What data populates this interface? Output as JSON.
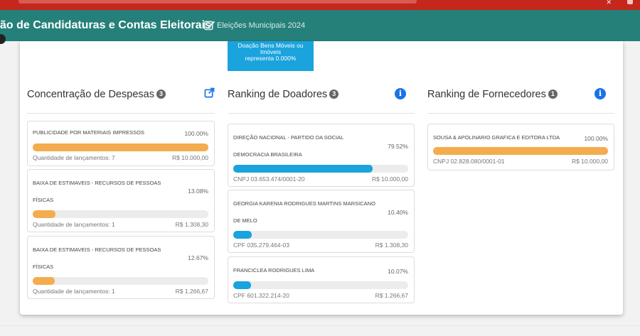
{
  "header": {
    "title": "ão de Candidaturas e Contas Eleitorais",
    "subtitle": "Eleições Municipais 2024"
  },
  "top_box": {
    "lines": [
      "Doação Bens Móveis ou",
      "Imóveis",
      "representa 0.000%"
    ]
  },
  "columns": [
    {
      "title": "Concentração de Despesas",
      "badge": "3",
      "action_icon": "external-link-icon",
      "accent": "#f3ad4e",
      "items": [
        {
          "name": "PUBLICIDADE POR MATERIAIS IMPRESSOS",
          "name2": "",
          "pct": "100.00%",
          "fraction": 1.0,
          "foot_left": "Quantidade de lançamentos: 7",
          "foot_right": "R$ 10.000,00"
        },
        {
          "name": "BAIXA DE ESTIMAVEIS - RECURSOS DE PESSOAS",
          "name2": "FÍSICAS",
          "pct": "13.08%",
          "fraction": 0.1308,
          "foot_left": "Quantidade de lançamentos: 1",
          "foot_right": "R$ 1.308,30"
        },
        {
          "name": "BAIXA DE ESTIMAVEIS - RECURSOS DE PESSOAS",
          "name2": "FÍSICAS",
          "pct": "12.67%",
          "fraction": 0.1267,
          "foot_left": "Quantidade de lançamentos: 1",
          "foot_right": "R$ 1.266,67"
        }
      ]
    },
    {
      "title": "Ranking de Doadores",
      "badge": "3",
      "action_icon": "info-icon",
      "accent": "#1aa3dd",
      "items": [
        {
          "name": "DIREÇÃO NACIONAL - PARTIDO DA SOCIAL",
          "name2": "DEMOCRACIA BRASILEIRA",
          "pct": "79.52%",
          "fraction": 0.7952,
          "foot_left": "CNPJ 03.653.474/0001-20",
          "foot_right": "R$ 10.000,00"
        },
        {
          "name": "GEORGIA KARENIA RODRIGUES MARTINS MARSICANO",
          "name2": "DE MELO",
          "pct": "10.40%",
          "fraction": 0.104,
          "foot_left": "CPF 035.279.464-03",
          "foot_right": "R$ 1.308,30"
        },
        {
          "name": "FRANCICLEA RODRIGUES LIMA",
          "name2": "",
          "pct": "10.07%",
          "fraction": 0.1007,
          "foot_left": "CPF 601.322.214-20",
          "foot_right": "R$ 1.266,67"
        }
      ]
    },
    {
      "title": "Ranking de Fornecedores",
      "badge": "1",
      "action_icon": "info-icon",
      "accent": "#f3ad4e",
      "items": [
        {
          "name": "SOUSA & APOLINARIO GRAFICA E EDITORA LTDA",
          "name2": "",
          "pct": "100.00%",
          "fraction": 1.0,
          "foot_left": "CNPJ 02.828.080/0001-01",
          "foot_right": "R$ 10.000,00"
        }
      ]
    }
  ]
}
